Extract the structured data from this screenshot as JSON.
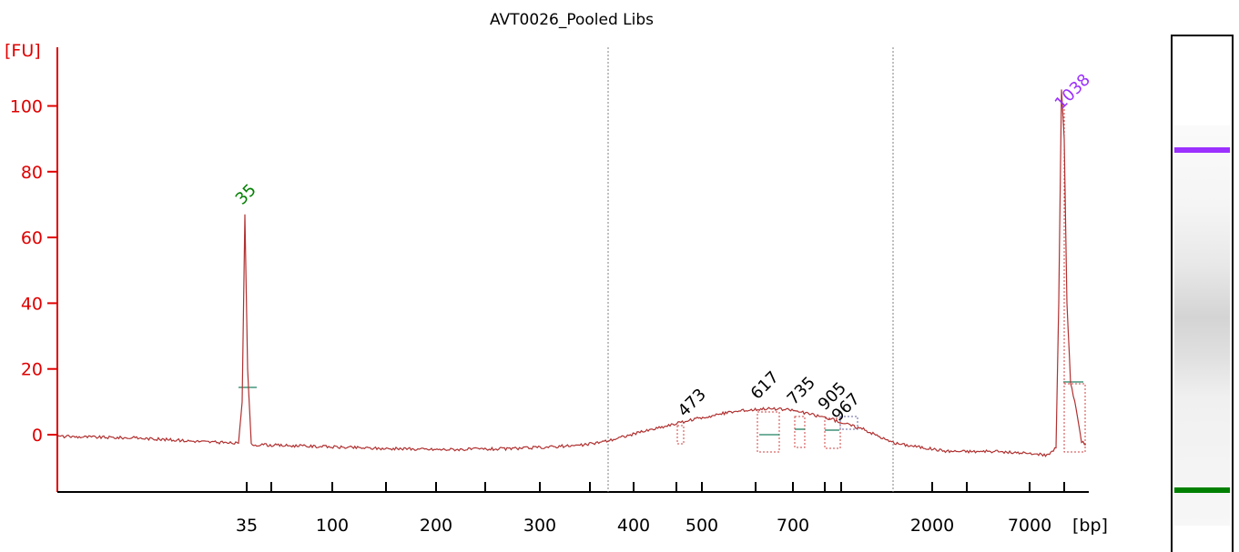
{
  "chart_data": {
    "type": "line",
    "title": "AVT0026_Pooled Libs",
    "ylabel": "[FU]",
    "xlabel": "[bp]",
    "ylim": [
      -18,
      118
    ],
    "yticks": [
      0,
      20,
      40,
      60,
      80,
      100
    ],
    "xtick_labels": [
      "35",
      "",
      "100",
      "",
      "200",
      "",
      "300",
      "",
      "400",
      "",
      "500",
      "",
      "700",
      "",
      "",
      "2000",
      "",
      "7000",
      "",
      "[bp]"
    ],
    "grid": false,
    "series": [
      {
        "color": "#b03030",
        "marker_peaks": [
          {
            "label": "35",
            "x_label_index": 0,
            "height": 67,
            "color": "#008000"
          },
          {
            "label": "473",
            "height": 3.5,
            "color": "#000000"
          },
          {
            "label": "617",
            "height": 8,
            "color": "#000000"
          },
          {
            "label": "735",
            "height": 7,
            "color": "#000000"
          },
          {
            "label": "905",
            "height": 6,
            "color": "#000000"
          },
          {
            "label": "967",
            "height": 5,
            "color": "#000000"
          },
          {
            "label": "1038",
            "height": 105,
            "color": "#9b30ff"
          }
        ]
      }
    ],
    "baseline_levels": {
      "start": -0.5,
      "low": -4.5,
      "smear_max": 8,
      "end": -5
    }
  },
  "gel": {
    "upper_marker_color": "#9b30ff",
    "lower_marker_color": "#008000"
  }
}
